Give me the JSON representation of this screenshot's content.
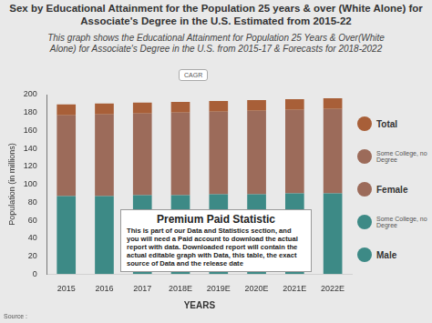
{
  "chart_data": {
    "type": "bar",
    "title": "Sex by Educational Attainment for the Population 25 years & over (White Alone) for Associate's Degree in the U.S. Estimated from 2015-22",
    "subtitle": "This graph shows the Educational Attainment for Population 25 Years & Over(White Alone) for Associate's Degree in the U.S. from 2015-17 & Forecasts for 2018-2022",
    "x_label": "YEARS",
    "y_label": "Population (in millions)",
    "categories": [
      "2015",
      "2016",
      "2017",
      "2018E",
      "2019E",
      "2020E",
      "2021E",
      "2022E"
    ],
    "series": [
      {
        "name": "Male",
        "color": "#3d8a86",
        "values": [
          87,
          87,
          88,
          88,
          89,
          89,
          90,
          90
        ]
      },
      {
        "name": "Female",
        "color": "#9c6b5a",
        "values": [
          90,
          91,
          91,
          92,
          92,
          93,
          93,
          94
        ]
      },
      {
        "name": "Total",
        "color": "#a85f38",
        "values": [
          12,
          12,
          12,
          12,
          12,
          12,
          12,
          12
        ]
      }
    ],
    "stacked": true,
    "ylim": [
      0,
      200
    ],
    "yticks": [
      0,
      20,
      40,
      60,
      80,
      100,
      120,
      140,
      160,
      180,
      200
    ],
    "grid": false,
    "legend": "right",
    "annotations": [
      "Some College, no Degree",
      "Some College, no Degree",
      "Premium Paid Statistic",
      "This is part of our Data and Statistics section, and you will need a Paid account to download the actual report with data. Downloaded report will contain the actual editable graph with Data, this table, the exact source of Data and the release date",
      "CAGR",
      "Source :"
    ]
  }
}
